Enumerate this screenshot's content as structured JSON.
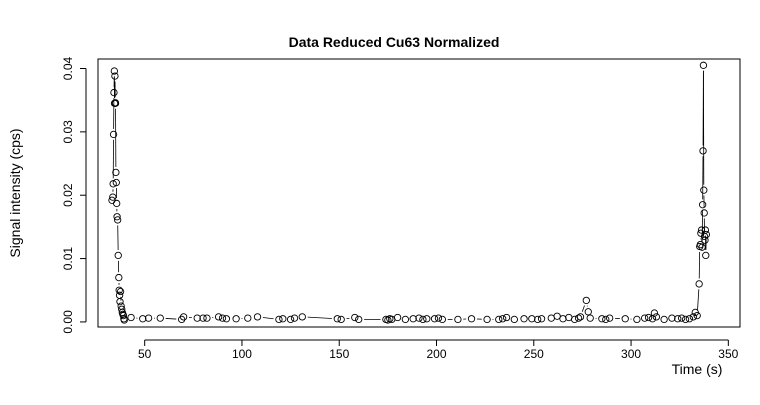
{
  "chart_data": {
    "type": "scatter",
    "title": "Data Reduced Cu63 Normalized",
    "xlabel": "Time (s)",
    "ylabel": "Signal intensity (cps)",
    "xlim": [
      26,
      356
    ],
    "ylim": [
      -0.0008,
      0.0415
    ],
    "xticks": [
      50,
      100,
      150,
      200,
      250,
      300,
      350
    ],
    "yticks": [
      0.0,
      0.01,
      0.02,
      0.03,
      0.04
    ],
    "ytick_labels": [
      "0.00",
      "0.01",
      "0.02",
      "0.03",
      "0.04"
    ],
    "grid": false,
    "legend": "none",
    "style": "points joined by thin lines",
    "x": [
      33.2,
      33.6,
      33.8,
      34.0,
      34.2,
      34.4,
      34.5,
      34.7,
      34.9,
      35.0,
      35.2,
      35.4,
      35.6,
      35.8,
      36.1,
      36.4,
      36.7,
      36.9,
      37.1,
      37.3,
      37.6,
      37.9,
      38.2,
      38.5,
      38.8,
      39.1,
      39.3,
      39.5,
      43,
      49,
      52,
      58,
      69,
      70,
      77,
      80,
      82,
      88,
      90,
      92,
      97,
      103,
      108,
      119,
      121,
      125,
      127,
      131,
      149,
      151,
      158,
      160,
      174,
      175,
      176,
      177,
      180,
      184,
      188,
      191,
      193,
      195,
      199,
      201,
      203,
      211,
      218,
      226,
      232,
      234,
      236,
      240,
      245,
      249,
      252,
      254,
      259,
      262,
      265,
      268,
      271,
      273,
      274,
      277,
      278,
      279,
      285,
      287,
      289,
      297,
      303,
      307,
      309,
      311,
      312,
      313,
      317,
      321,
      324,
      326,
      328,
      330,
      332,
      333,
      334,
      335.0,
      335.3,
      335.6,
      335.9,
      336.2,
      336.5,
      336.8,
      337.0,
      337.2,
      337.4,
      337.6,
      337.8,
      338.0,
      338.2,
      338.4,
      338.7
    ],
    "y": [
      0.0192,
      0.0197,
      0.0218,
      0.0296,
      0.0362,
      0.0396,
      0.0345,
      0.0388,
      0.0346,
      0.0345,
      0.0236,
      0.022,
      0.0187,
      0.0166,
      0.0161,
      0.0105,
      0.007,
      0.005,
      0.0042,
      0.0032,
      0.0048,
      0.0025,
      0.002,
      0.0015,
      0.0012,
      0.001,
      0.0005,
      0.0003,
      0.0007,
      0.0005,
      0.0006,
      0.0006,
      0.0004,
      0.0008,
      0.0006,
      0.0006,
      0.0006,
      0.0008,
      0.0006,
      0.0005,
      0.0005,
      0.0006,
      0.0008,
      0.0004,
      0.0005,
      0.0004,
      0.0006,
      0.0008,
      0.0005,
      0.0004,
      0.0007,
      0.0004,
      0.0004,
      0.0003,
      0.0005,
      0.0004,
      0.0007,
      0.0004,
      0.0005,
      0.0006,
      0.0004,
      0.0005,
      0.0005,
      0.0006,
      0.0004,
      0.0004,
      0.0005,
      0.0004,
      0.0004,
      0.0005,
      0.0007,
      0.0004,
      0.0005,
      0.0005,
      0.0004,
      0.0005,
      0.0006,
      0.0009,
      0.0005,
      0.0007,
      0.0004,
      0.0006,
      0.0008,
      0.0034,
      0.0016,
      0.0006,
      0.0005,
      0.0004,
      0.0006,
      0.0005,
      0.0004,
      0.0006,
      0.0007,
      0.0005,
      0.0014,
      0.0008,
      0.0004,
      0.0006,
      0.0005,
      0.0006,
      0.0004,
      0.0005,
      0.0008,
      0.0015,
      0.001,
      0.006,
      0.0119,
      0.0122,
      0.014,
      0.0145,
      0.0118,
      0.0185,
      0.027,
      0.0405,
      0.0208,
      0.0172,
      0.0135,
      0.0129,
      0.0145,
      0.0105,
      0.0138
    ]
  }
}
